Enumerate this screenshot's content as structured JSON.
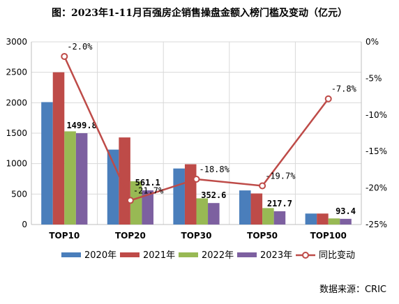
{
  "title": "图：2023年1-11月百强房企销售操盘金额入榜门槛及变动（亿元）",
  "source": "数据来源：CRIC",
  "chart_data": {
    "type": "bar",
    "categories": [
      "TOP10",
      "TOP20",
      "TOP30",
      "TOP50",
      "TOP100"
    ],
    "series": [
      {
        "name": "2020年",
        "color": "#4a7ebb",
        "values": [
          2010,
          1230,
          920,
          560,
          180
        ]
      },
      {
        "name": "2021年",
        "color": "#be4b48",
        "values": [
          2500,
          1430,
          990,
          510,
          180
        ]
      },
      {
        "name": "2022年",
        "color": "#98b954",
        "values": [
          1530,
          710,
          430,
          270,
          100
        ]
      },
      {
        "name": "2023年",
        "color": "#7d60a0",
        "values": [
          1499.8,
          561.1,
          352.6,
          217.7,
          93.4
        ]
      }
    ],
    "bar_labels": [
      "1499.8",
      "561.1",
      "352.6",
      "217.7",
      "93.4"
    ],
    "line": {
      "name": "同比变动",
      "color": "#be4b48",
      "values": [
        -2.0,
        -21.7,
        -18.8,
        -19.7,
        -7.8
      ],
      "labels": [
        "-2.0%",
        "-21.7%",
        "-18.8%",
        "-19.7%",
        "-7.8%"
      ]
    },
    "ylim": [
      0,
      3000
    ],
    "yticks": [
      "0",
      "500",
      "1000",
      "1500",
      "2000",
      "2500",
      "3000"
    ],
    "y2lim": [
      -25,
      0
    ],
    "y2ticks": [
      "-25%",
      "-20%",
      "-15%",
      "-10%",
      "-5%",
      "0%"
    ],
    "grid": true,
    "legend": "bottom"
  }
}
